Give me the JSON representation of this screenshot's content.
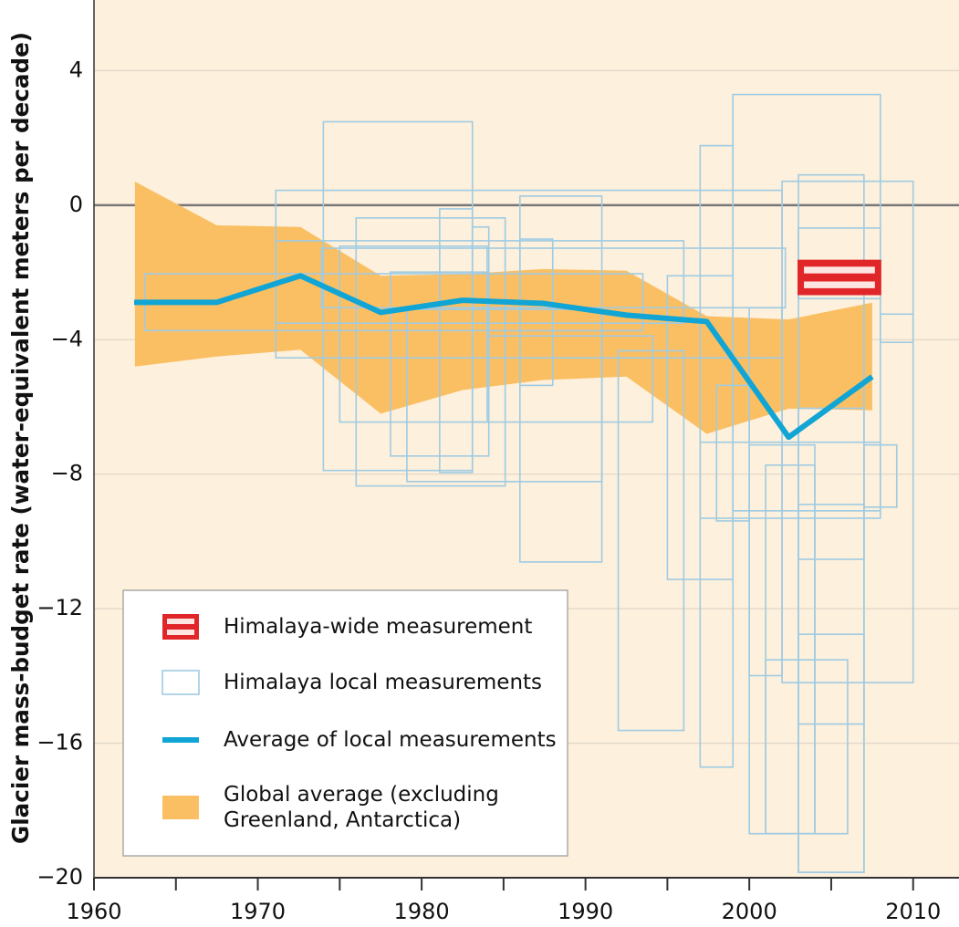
{
  "chart_data": {
    "type": "line",
    "ylabel": "Glacier mass-budget rate (water-equivalent meters per decade)",
    "xlim": [
      1960,
      2012.8
    ],
    "ylim": [
      -20,
      6.1
    ],
    "xticks": [
      1960,
      1970,
      1980,
      1990,
      2000,
      2010
    ],
    "xminorticks": [
      1965,
      1975,
      1985,
      1995,
      2005
    ],
    "yticks": [
      {
        "value": -20,
        "label": "−20"
      },
      {
        "value": -16,
        "label": "−16"
      },
      {
        "value": -12,
        "label": "−12"
      },
      {
        "value": -8,
        "label": "−8"
      },
      {
        "value": -4,
        "label": "−4"
      },
      0,
      4
    ],
    "grid": true,
    "zero_line": true,
    "legend": "lower left",
    "series": [
      {
        "name": "Himalaya-wide measurement",
        "type": "range",
        "color": "#e1262a",
        "x": [
          2003,
          2008
        ],
        "values": [
          -2.65,
          -1.65
        ]
      },
      {
        "name": "Himalaya local measurements",
        "type": "boxes",
        "color": "#9fcbe3",
        "boxes": [
          {
            "x": [
              1963.1,
              1993.5
            ],
            "values": [
              -3.73,
              -2.04
            ]
          },
          {
            "x": [
              1971.1,
              2002.0
            ],
            "values": [
              -4.54,
              0.44
            ]
          },
          {
            "x": [
              1971.1,
              1996.0
            ],
            "values": [
              -3.51,
              -1.06
            ]
          },
          {
            "x": [
              1974.0,
              1983.1
            ],
            "values": [
              -7.89,
              2.48
            ]
          },
          {
            "x": [
              1975.0,
              1984.0
            ],
            "values": [
              -6.45,
              -1.22
            ]
          },
          {
            "x": [
              1976.0,
              1985.1
            ],
            "values": [
              -8.35,
              -0.38
            ]
          },
          {
            "x": [
              1978.1,
              1984.1
            ],
            "values": [
              -7.46,
              -1.99
            ]
          },
          {
            "x": [
              1979.1,
              1991.0
            ],
            "values": [
              -8.22,
              -3.1
            ]
          },
          {
            "x": [
              1981.1,
              1983.1
            ],
            "values": [
              -7.95,
              -0.11
            ]
          },
          {
            "x": [
              1983.1,
              1984.1
            ],
            "values": [
              -6.45,
              -0.65
            ]
          },
          {
            "x": [
              1986.0,
              1991.0
            ],
            "values": [
              -10.61,
              0.27
            ]
          },
          {
            "x": [
              1986.0,
              1988.0
            ],
            "values": [
              -5.36,
              -1.01
            ]
          },
          {
            "x": [
              1992.0,
              1996.0
            ],
            "values": [
              -15.62,
              -4.33
            ]
          },
          {
            "x": [
              1984.1,
              1994.1
            ],
            "values": [
              -6.45,
              -3.89
            ]
          },
          {
            "x": [
              1995.0,
              1999.0
            ],
            "values": [
              -11.13,
              -2.1
            ]
          },
          {
            "x": [
              1997.0,
              1999.0
            ],
            "values": [
              -16.71,
              1.77
            ]
          },
          {
            "x": [
              1998.0,
              2000.0
            ],
            "values": [
              -9.39,
              -5.36
            ]
          },
          {
            "x": [
              1999.0,
              2008.0
            ],
            "values": [
              -9.09,
              3.29
            ]
          },
          {
            "x": [
              2000.0,
              2002.0
            ],
            "values": [
              -13.99,
              -3.05
            ]
          },
          {
            "x": [
              2000.0,
              2004.0
            ],
            "values": [
              -18.69,
              -7.13
            ]
          },
          {
            "x": [
              2001.0,
              2004.0
            ],
            "values": [
              -18.69,
              -7.73
            ]
          },
          {
            "x": [
              2002.0,
              2010.0
            ],
            "values": [
              -14.2,
              0.71
            ]
          },
          {
            "x": [
              2003.0,
              2007.0
            ],
            "values": [
              -19.84,
              0.9
            ]
          },
          {
            "x": [
              2003.0,
              2007.0
            ],
            "values": [
              -19.84,
              -8.9
            ]
          },
          {
            "x": [
              2001.0,
              2006.0
            ],
            "values": [
              -18.69,
              -13.52
            ]
          },
          {
            "x": [
              2007.0,
              2009.0
            ],
            "values": [
              -8.98,
              -7.13
            ]
          },
          {
            "x": [
              2003.0,
              2008.0
            ],
            "values": [
              -2.78,
              -0.68
            ]
          },
          {
            "x": [
              2003.0,
              2007.0
            ],
            "values": [
              -10.53,
              -6.04
            ]
          },
          {
            "x": [
              2003.0,
              2007.0
            ],
            "values": [
              -15.43,
              -12.76
            ]
          },
          {
            "x": [
              2008.0,
              2010.0
            ],
            "values": [
              -4.08,
              -3.24
            ]
          },
          {
            "x": [
              1997.0,
              2008.0
            ],
            "values": [
              -9.31,
              -7.05
            ]
          },
          {
            "x": [
              1973.9,
              2002.2
            ],
            "values": [
              -3.05,
              -1.28
            ]
          }
        ]
      },
      {
        "name": "Average of local measurements",
        "type": "line",
        "color": "#10a5d4",
        "x": [
          1962.45,
          1967.5,
          1972.6,
          1977.5,
          1982.5,
          1987.4,
          1992.5,
          1997.4,
          2002.4,
          2007.5
        ],
        "values": [
          -2.89,
          -2.89,
          -2.1,
          -3.19,
          -2.83,
          -2.92,
          -3.27,
          -3.46,
          -6.9,
          -5.1
        ]
      },
      {
        "name": "Global average (excluding\nGreenland, Antarctica)",
        "type": "band",
        "color": "#fbbf63",
        "x": [
          1962.5,
          1967.5,
          1972.6,
          1977.5,
          1982.5,
          1987.4,
          1992.5,
          1997.4,
          2002.4,
          2007.5
        ],
        "upper": [
          0.7,
          -0.6,
          -0.65,
          -2.1,
          -2.05,
          -1.9,
          -1.95,
          -3.3,
          -3.4,
          -2.9
        ],
        "lower": [
          -4.8,
          -4.5,
          -4.3,
          -6.2,
          -5.5,
          -5.2,
          -5.1,
          -6.8,
          -6.05,
          -6.1
        ]
      }
    ]
  }
}
